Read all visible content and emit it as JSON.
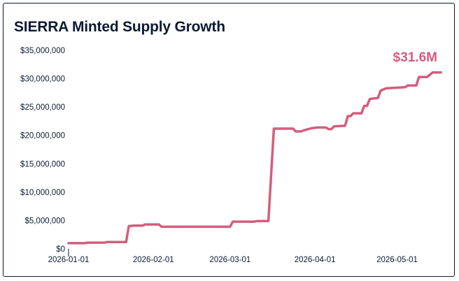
{
  "chart_data": {
    "type": "line",
    "title": "SIERRA Minted Supply Growth",
    "xlabel": "",
    "ylabel": "",
    "x_ticks": [
      "2026-01-01",
      "2026-02-01",
      "2026-03-01",
      "2026-04-01",
      "2026-05-01"
    ],
    "y_ticks": [
      "$0",
      "$5,000,000",
      "$10,000,000",
      "$15,000,000",
      "$20,000,000",
      "$25,000,000",
      "$30,000,000",
      "$35,000,000"
    ],
    "ylim": [
      0,
      35000000
    ],
    "xlim": [
      "2026-01-01",
      "2026-05-18"
    ],
    "grid": false,
    "colors": {
      "line": "#d45d7e",
      "text": "#0b1a33"
    },
    "callout": "$31.6M",
    "series": [
      {
        "points": [
          [
            "2026-01-01",
            1000000
          ],
          [
            "2026-01-07",
            1000000
          ],
          [
            "2026-01-08",
            1100000
          ],
          [
            "2026-01-14",
            1100000
          ],
          [
            "2026-01-15",
            1200000
          ],
          [
            "2026-01-22",
            1200000
          ],
          [
            "2026-01-23",
            4000000
          ],
          [
            "2026-01-25",
            4100000
          ],
          [
            "2026-01-28",
            4100000
          ],
          [
            "2026-01-29",
            4300000
          ],
          [
            "2026-02-03",
            4300000
          ],
          [
            "2026-02-04",
            3900000
          ],
          [
            "2026-02-10",
            3900000
          ],
          [
            "2026-02-20",
            3900000
          ],
          [
            "2026-03-01",
            3900000
          ],
          [
            "2026-03-02",
            4800000
          ],
          [
            "2026-03-10",
            4800000
          ],
          [
            "2026-03-11",
            4900000
          ],
          [
            "2026-03-15",
            4900000
          ],
          [
            "2026-03-17",
            21200000
          ],
          [
            "2026-03-20",
            21200000
          ],
          [
            "2026-03-24",
            21200000
          ],
          [
            "2026-03-25",
            20700000
          ],
          [
            "2026-03-27",
            20700000
          ],
          [
            "2026-03-28",
            20900000
          ],
          [
            "2026-03-31",
            21300000
          ],
          [
            "2026-04-02",
            21400000
          ],
          [
            "2026-04-05",
            21400000
          ],
          [
            "2026-04-06",
            21100000
          ],
          [
            "2026-04-07",
            21100000
          ],
          [
            "2026-04-08",
            21600000
          ],
          [
            "2026-04-12",
            21700000
          ],
          [
            "2026-04-13",
            23400000
          ],
          [
            "2026-04-14",
            23400000
          ],
          [
            "2026-04-15",
            23900000
          ],
          [
            "2026-04-18",
            23900000
          ],
          [
            "2026-04-19",
            25200000
          ],
          [
            "2026-04-20",
            25200000
          ],
          [
            "2026-04-21",
            26400000
          ],
          [
            "2026-04-22",
            26500000
          ],
          [
            "2026-04-24",
            26600000
          ],
          [
            "2026-04-25",
            27900000
          ],
          [
            "2026-04-26",
            28100000
          ],
          [
            "2026-04-27",
            28300000
          ],
          [
            "2026-04-30",
            28400000
          ],
          [
            "2026-05-04",
            28500000
          ],
          [
            "2026-05-05",
            28800000
          ],
          [
            "2026-05-08",
            28800000
          ],
          [
            "2026-05-09",
            30300000
          ],
          [
            "2026-05-12",
            30300000
          ],
          [
            "2026-05-14",
            31100000
          ],
          [
            "2026-05-17",
            31100000
          ]
        ]
      }
    ]
  }
}
